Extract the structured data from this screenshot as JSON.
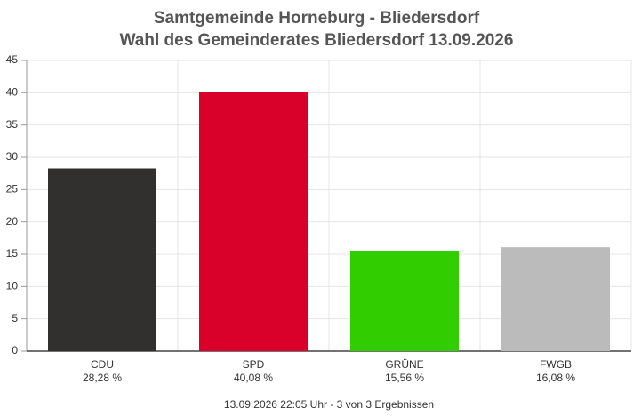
{
  "chart_data": {
    "type": "bar",
    "title": "Samtgemeinde Horneburg - Bliedersdorf",
    "subtitle": "Wahl des Gemeinderates Bliedersdorf 13.09.2026",
    "categories": [
      "CDU",
      "SPD",
      "GRÜNE",
      "FWGB"
    ],
    "values": [
      28.28,
      40.08,
      15.56,
      16.08
    ],
    "value_labels": [
      "28,28 %",
      "40,08 %",
      "15,56 %",
      "16,08 %"
    ],
    "colors": [
      "#32302f",
      "#d9002a",
      "#32cd00",
      "#bbbbbb"
    ],
    "ylim": [
      0,
      45
    ],
    "yticks": [
      0,
      5,
      10,
      15,
      20,
      25,
      30,
      35,
      40,
      45
    ],
    "grid": true,
    "footer": "13.09.2026 22:05 Uhr - 3 von 3 Ergebnissen"
  }
}
